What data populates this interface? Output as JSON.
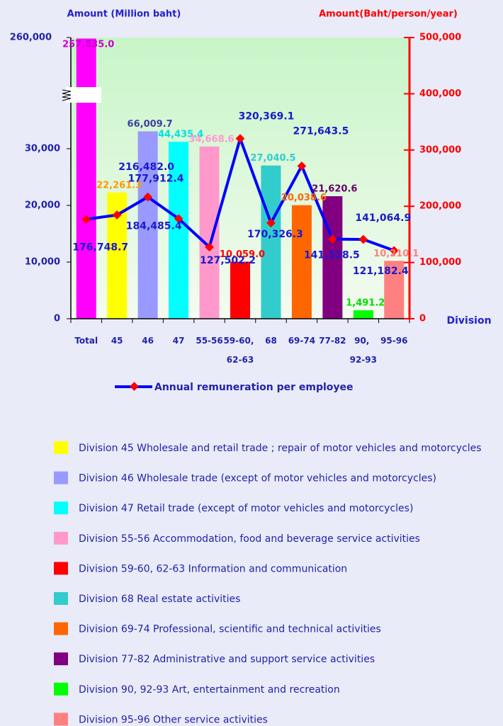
{
  "chart_data": {
    "type": "bar_line",
    "y_label": "Amount  (Million baht)",
    "y2_label": "Amount(Baht/person/year)",
    "x_label": "Division",
    "categories": [
      "Total",
      "45",
      "46",
      "47",
      "55-56",
      "59-60, 62-63",
      "68",
      "69-74",
      "77-82",
      "90, 92-93",
      "95-96"
    ],
    "bars": {
      "values": [
        257835.0,
        22261.3,
        66009.7,
        44435.4,
        34668.6,
        10059.0,
        27040.5,
        20038.6,
        21620.6,
        1491.2,
        10210.1
      ],
      "value_labels": [
        "257,835.0",
        "22,261.3",
        "66,009.7",
        "44,435.4",
        "34,668.6",
        "10,059.0",
        "27,040.5",
        "20,038.6",
        "21,620.6",
        "1,491.2",
        "10,210.1"
      ],
      "colors": [
        "#ff00ff",
        "#ffff00",
        "#9999ff",
        "#00ffff",
        "#ff99cc",
        "#ff0000",
        "#33cccc",
        "#ff6600",
        "#800080",
        "#00ff00",
        "#ff8080"
      ],
      "label_colors": [
        "#cc00cc",
        "#ff9900",
        "#4040a0",
        "#00e0e0",
        "#ff99cc",
        "#ff0000",
        "#33cccc",
        "#ff6600",
        "#660066",
        "#00dd00",
        "#ff8080"
      ]
    },
    "series": [
      {
        "name": "Annual remuneration per employee",
        "color": "#0000ff",
        "marker_color": "#ff0000",
        "axis": "y2",
        "values": [
          176748.7,
          184485.4,
          216482.0,
          177912.4,
          127502.2,
          320369.1,
          170326.3,
          271643.5,
          141528.5,
          141064.9,
          121182.4
        ],
        "value_labels": [
          "176,748.7",
          "184,485.4",
          "216,482.0",
          "177,912.4",
          "127,502.2",
          "320,369.1",
          "170,326.3",
          "271,643.5",
          "141,528.5",
          "141,064.9",
          "121,182.4"
        ]
      }
    ],
    "ylim": [
      0,
      260000
    ],
    "yticks": [
      0,
      {
        "value": 10000,
        "label": "10,000"
      },
      {
        "value": 20000,
        "label": "20,000"
      },
      {
        "value": 30000,
        "label": "30,000"
      },
      {
        "value": 260000,
        "label": "260,000"
      }
    ],
    "y_break": true,
    "y2lim": [
      0,
      500000
    ],
    "y2ticks": [
      0,
      {
        "value": 100000,
        "label": "100,000"
      },
      {
        "value": 200000,
        "label": "200,000"
      },
      {
        "value": 300000,
        "label": "300,000"
      },
      {
        "value": 400000,
        "label": "400,000"
      },
      {
        "value": 500000,
        "label": "500,000"
      }
    ],
    "category_descriptions": [
      {
        "label": "Division 45 Wholesale and retail trade ; repair of motor vehicles and  motorcycles",
        "color": "#ffff00"
      },
      {
        "label": "Division 46 Wholesale trade (except of motor vehicles and motorcycles)",
        "color": "#9999ff"
      },
      {
        "label": "Division 47 Retail trade (except of motor vehicles and motorcycles)",
        "color": "#00ffff"
      },
      {
        "label": "Division 55-56 Accommodation, food and beverage service activities",
        "color": "#ff99cc"
      },
      {
        "label": "Division 59-60, 62-63 Information and communication",
        "color": "#ff0000"
      },
      {
        "label": "Division 68 Real estate activities",
        "color": "#33cccc"
      },
      {
        "label": "Division 69-74 Professional, scientific and technical activities",
        "color": "#ff6600"
      },
      {
        "label": "Division 77-82 Administrative and support service activities",
        "color": "#800080"
      },
      {
        "label": "Division 90, 92-93 Art, entertainment and recreation",
        "color": "#00ff00"
      },
      {
        "label": "Division 95-96 Other service activities",
        "color": "#ff8080"
      }
    ]
  }
}
